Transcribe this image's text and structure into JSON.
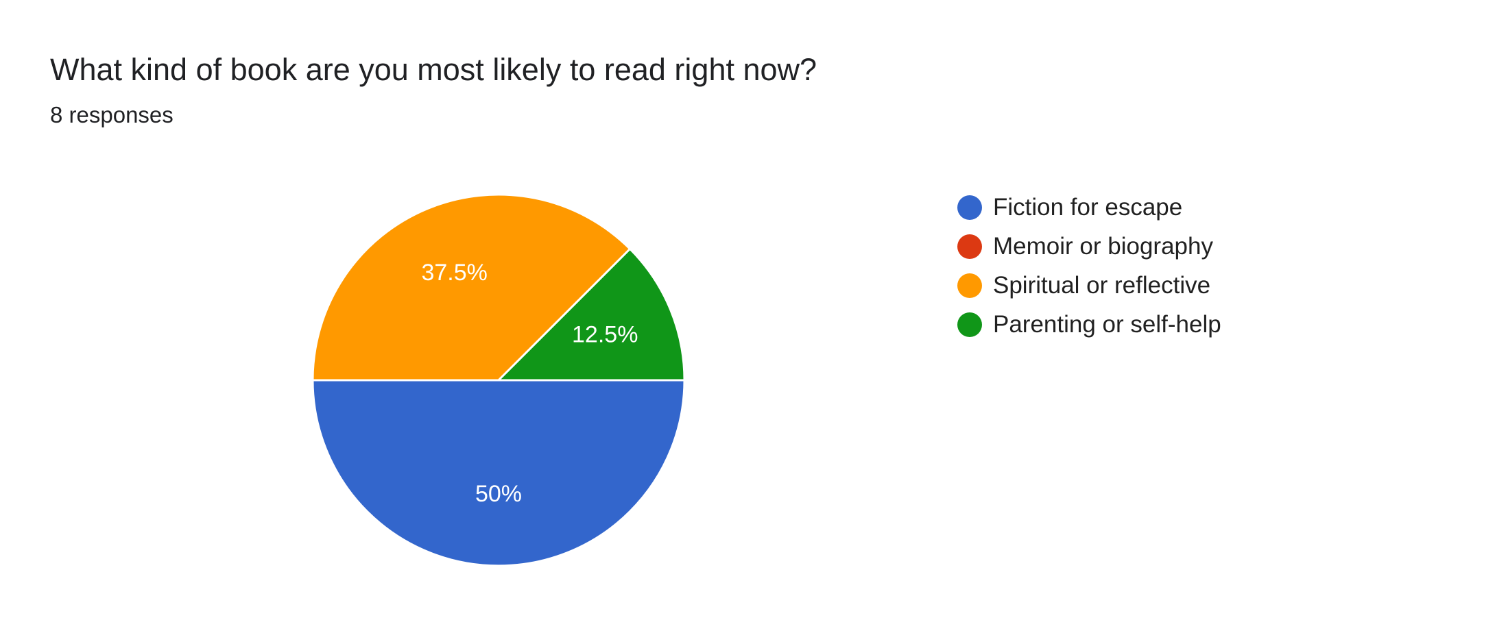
{
  "question": {
    "title": "What kind of book are you most likely to read right now?",
    "responses": "8 responses"
  },
  "chart_data": {
    "type": "pie",
    "title": "",
    "slices": [
      {
        "label": "Fiction for escape",
        "value": 50,
        "display": "50%",
        "color": "#3366cc"
      },
      {
        "label": "Memoir or biography",
        "value": 0,
        "display": "",
        "color": "#dc3912"
      },
      {
        "label": "Spiritual or reflective",
        "value": 37.5,
        "display": "37.5%",
        "color": "#ff9900"
      },
      {
        "label": "Parenting or self-help",
        "value": 12.5,
        "display": "12.5%",
        "color": "#109618"
      }
    ],
    "legend_position": "right",
    "start_angle": "90 degrees clockwise from top (first slice begins at the 3 o'clock position going clockwise)"
  }
}
